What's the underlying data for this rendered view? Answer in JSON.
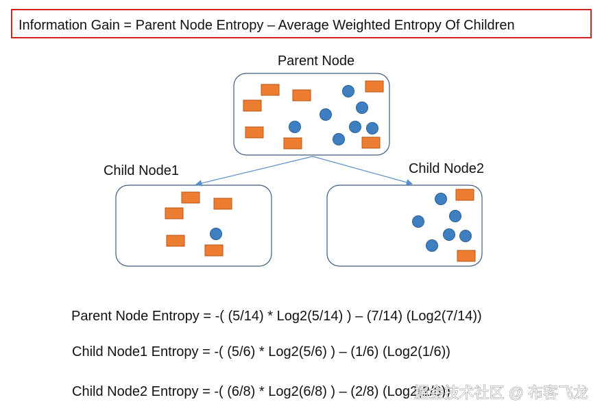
{
  "header": {
    "title": "Information Gain = Parent Node Entropy – Average Weighted Entropy Of Children"
  },
  "nodes": [
    {
      "label": "Parent Node"
    },
    {
      "label": "Child Node1"
    },
    {
      "label": "Child Node2"
    }
  ],
  "formulas": [
    "Parent Node Entropy = -( (5/14) * Log2(5/14) ) – (7/14) (Log2(7/14))",
    "Child Node1 Entropy = -( (5/6) * Log2(5/6) ) – (1/6) (Log2(1/6))",
    "Child Node2 Entropy = -( (6/8) * Log2(6/8) ) – (2/8) (Log2(2/8))"
  ],
  "watermark": "掘金技术社区 @ 布客飞龙"
}
